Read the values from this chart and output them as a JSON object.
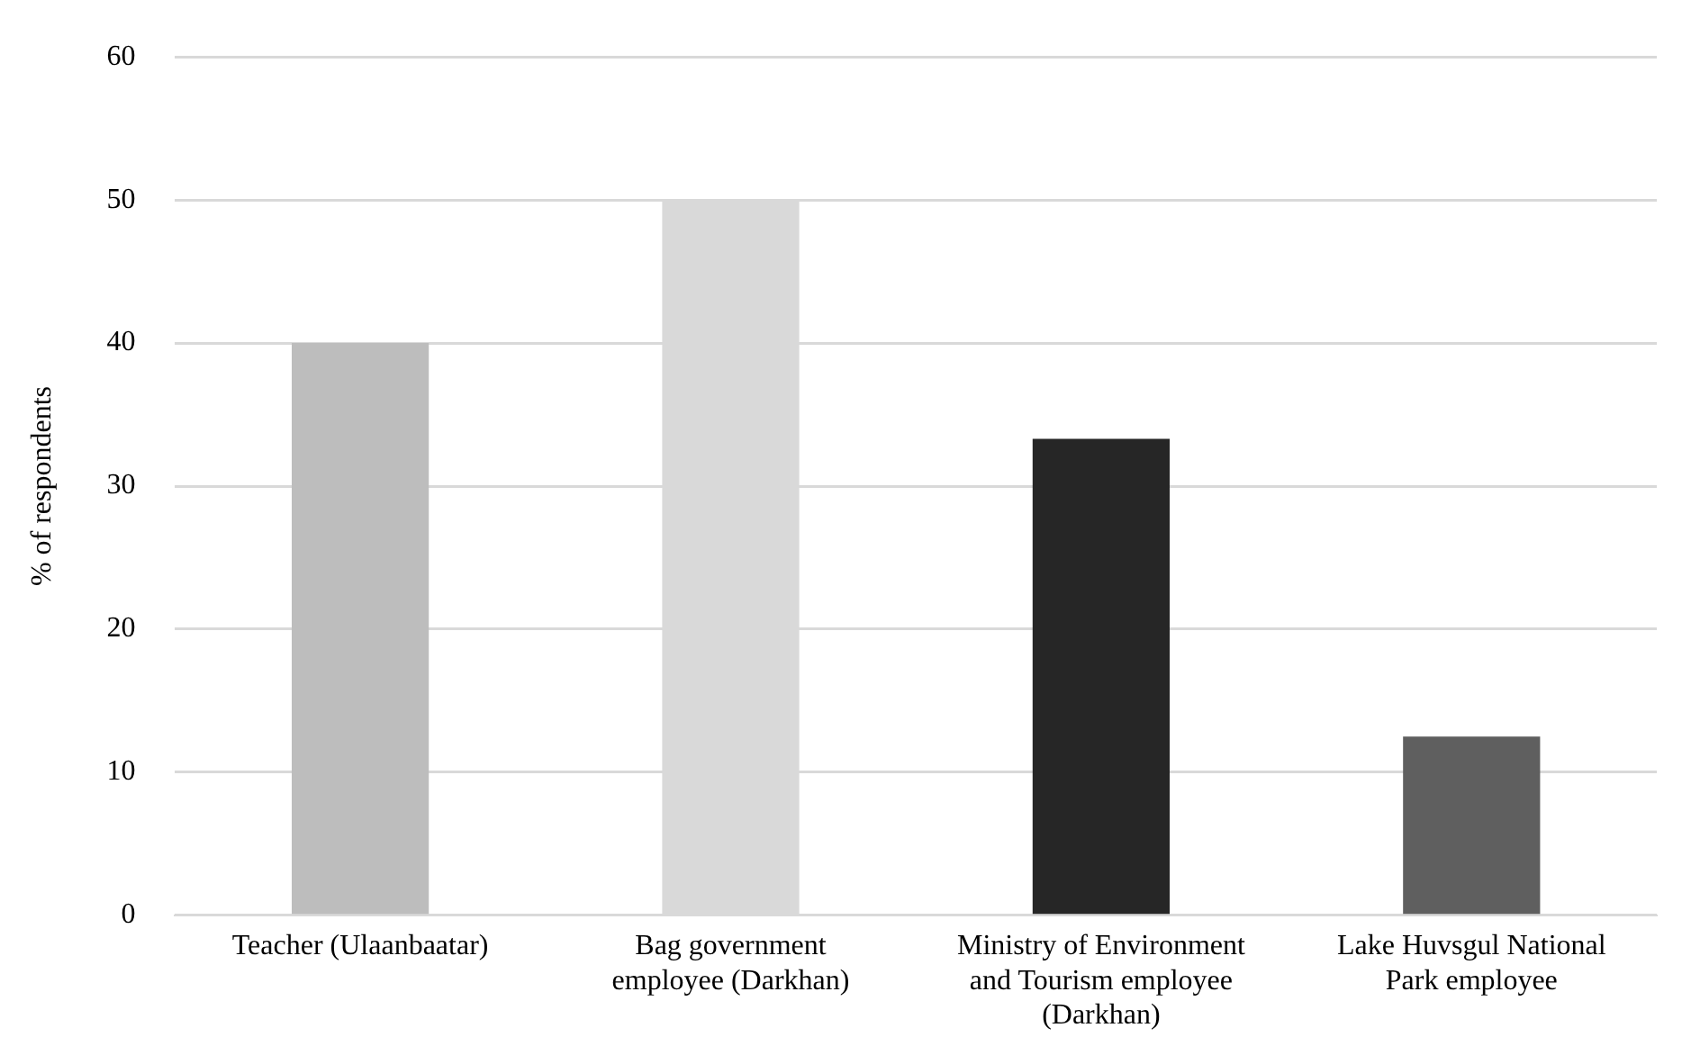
{
  "chart_data": {
    "type": "bar",
    "ylabel": "% of respondents",
    "categories": [
      "Teacher (Ulaanbaatar)",
      "Bag government employee (Darkhan)",
      "Ministry of Environment and Tourism employee (Darkhan)",
      "Lake Huvsgul National Park employee"
    ],
    "values": [
      40,
      50,
      33.3,
      12.5
    ],
    "colors": [
      "#bdbdbd",
      "#d9d9d9",
      "#262626",
      "#5f5f5f"
    ],
    "ylim": [
      0,
      60
    ],
    "yticks": [
      0,
      10,
      20,
      30,
      40,
      50,
      60
    ],
    "grid": "y",
    "legend": false
  }
}
